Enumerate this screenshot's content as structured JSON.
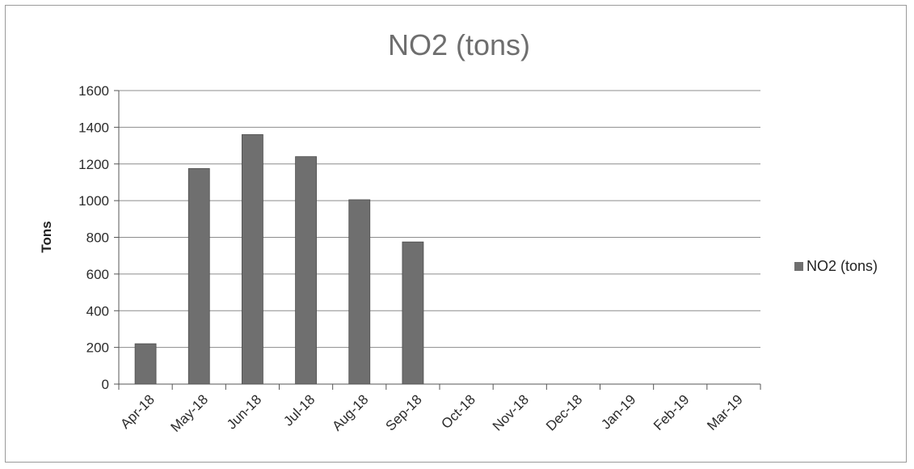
{
  "chart_data": {
    "type": "bar",
    "title": "NO2 (tons)",
    "xlabel": "",
    "ylabel": "Tons",
    "categories": [
      "Apr-18",
      "May-18",
      "Jun-18",
      "Jul-18",
      "Aug-18",
      "Sep-18",
      "Oct-18",
      "Nov-18",
      "Dec-18",
      "Jan-19",
      "Feb-19",
      "Mar-19"
    ],
    "series": [
      {
        "name": "NO2 (tons)",
        "values": [
          220,
          1175,
          1360,
          1240,
          1005,
          775,
          0,
          0,
          0,
          0,
          0,
          0
        ],
        "color": "#6f6f6f"
      }
    ],
    "ylim": [
      0,
      1600
    ],
    "yticks": [
      0,
      200,
      400,
      600,
      800,
      1000,
      1200,
      1400,
      1600
    ],
    "grid": true,
    "legend_position": "right"
  }
}
